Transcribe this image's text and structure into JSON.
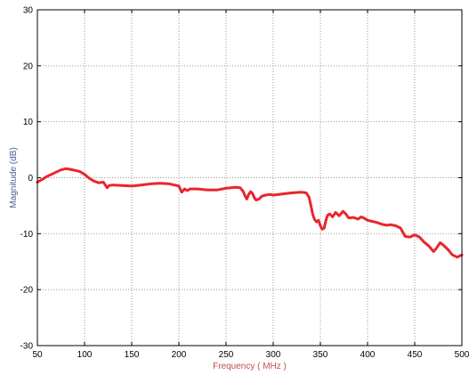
{
  "chart_data": {
    "type": "line",
    "title": "",
    "xlabel": "Frequency ( MHz )",
    "ylabel": "Magnitude (dB)",
    "xlim": [
      50,
      500
    ],
    "ylim": [
      -30,
      30
    ],
    "xticks": [
      50,
      100,
      150,
      200,
      250,
      300,
      350,
      400,
      450,
      500
    ],
    "yticks": [
      -30,
      -20,
      -10,
      0,
      10,
      20,
      30
    ],
    "grid": true,
    "grid_style": "dotted",
    "colors": {
      "line": "#e8262c",
      "xlabel": "#c0504d",
      "ylabel": "#4f5b8f",
      "grid": "#999999",
      "axes": "#000000"
    },
    "series": [
      {
        "x": [
          50,
          55,
          60,
          65,
          70,
          75,
          80,
          85,
          90,
          95,
          100,
          105,
          110,
          115,
          120,
          122,
          124,
          126,
          130,
          140,
          150,
          160,
          170,
          180,
          190,
          195,
          200,
          203,
          206,
          209,
          212,
          220,
          230,
          240,
          250,
          260,
          265,
          268,
          270,
          272,
          274,
          276,
          278,
          280,
          282,
          285,
          288,
          292,
          296,
          300,
          310,
          320,
          330,
          335,
          338,
          340,
          342,
          344,
          346,
          348,
          350,
          352,
          354,
          356,
          358,
          360,
          363,
          366,
          370,
          374,
          377,
          380,
          385,
          390,
          393,
          396,
          400,
          405,
          410,
          415,
          420,
          425,
          430,
          435,
          440,
          445,
          450,
          455,
          460,
          465,
          470,
          473,
          477,
          480,
          485,
          490,
          495,
          500
        ],
        "y": [
          -0.8,
          -0.3,
          0.2,
          0.6,
          1.0,
          1.4,
          1.6,
          1.5,
          1.3,
          1.1,
          0.6,
          -0.1,
          -0.6,
          -0.9,
          -0.8,
          -1.3,
          -1.8,
          -1.4,
          -1.3,
          -1.4,
          -1.5,
          -1.3,
          -1.1,
          -1.0,
          -1.1,
          -1.3,
          -1.5,
          -2.6,
          -2.0,
          -2.3,
          -2.0,
          -2.0,
          -2.2,
          -2.2,
          -1.9,
          -1.7,
          -1.8,
          -2.4,
          -3.2,
          -3.8,
          -3.0,
          -2.5,
          -2.8,
          -3.6,
          -4.0,
          -3.8,
          -3.3,
          -3.1,
          -3.0,
          -3.1,
          -2.9,
          -2.7,
          -2.6,
          -2.7,
          -3.5,
          -5.0,
          -6.6,
          -7.5,
          -7.9,
          -7.6,
          -8.6,
          -9.2,
          -9.0,
          -7.5,
          -6.6,
          -6.5,
          -7.0,
          -6.2,
          -6.8,
          -6.0,
          -6.5,
          -7.2,
          -7.1,
          -7.4,
          -7.0,
          -7.2,
          -7.6,
          -7.8,
          -8.0,
          -8.3,
          -8.5,
          -8.4,
          -8.6,
          -9.0,
          -10.5,
          -10.6,
          -10.2,
          -10.6,
          -11.5,
          -12.2,
          -13.2,
          -12.6,
          -11.6,
          -12.0,
          -12.8,
          -13.8,
          -14.2,
          -13.8
        ]
      }
    ]
  }
}
